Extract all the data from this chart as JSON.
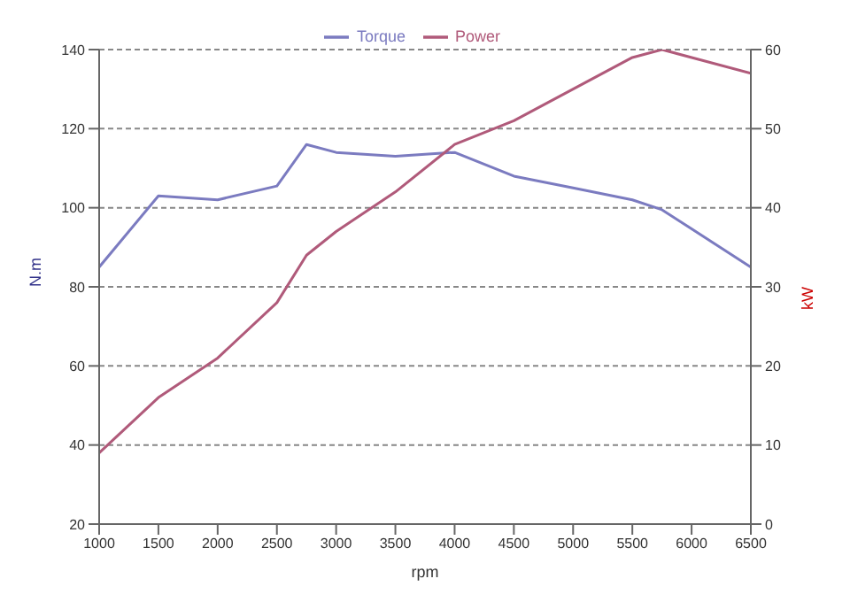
{
  "chart_data": {
    "type": "line",
    "x": [
      1000,
      1500,
      2000,
      2500,
      2750,
      3000,
      3500,
      4000,
      4500,
      5000,
      5500,
      5750,
      6500
    ],
    "series": [
      {
        "name": "Torque",
        "color": "#7b7bc0",
        "values": [
          85,
          103,
          102,
          105.5,
          116,
          114,
          113,
          114,
          108,
          105,
          102,
          99.5,
          85
        ]
      },
      {
        "name": "Power",
        "color": "#b05a7a",
        "axis": "y2",
        "values": [
          9,
          16,
          21,
          28,
          34,
          37,
          42,
          48,
          51,
          55,
          59,
          60,
          57
        ]
      }
    ],
    "xlabel": "rpm",
    "ylabel": "N.m",
    "y2label": "kW",
    "xlim": [
      1000,
      6500
    ],
    "xticks": [
      1000,
      1500,
      2000,
      2500,
      3000,
      3500,
      4000,
      4500,
      5000,
      5500,
      6000,
      6500
    ],
    "ylim": [
      20,
      140
    ],
    "yticks": [
      20,
      40,
      60,
      80,
      100,
      120,
      140
    ],
    "y2lim": [
      0,
      60
    ],
    "y2ticks": [
      0,
      10,
      20,
      30,
      40,
      50,
      60
    ],
    "grid": "y",
    "legend": "top",
    "marker": "none",
    "line_style": "solid"
  }
}
